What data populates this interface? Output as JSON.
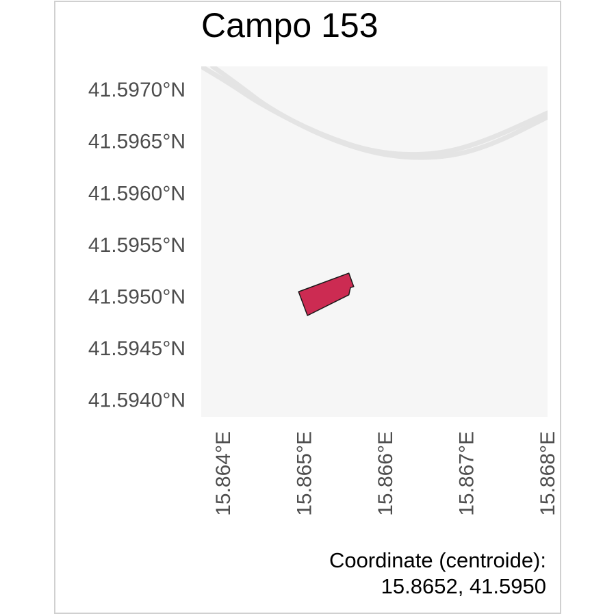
{
  "title": "Campo 153",
  "colors": {
    "parcel_fill": "#cc2b52",
    "parcel_stroke": "#1a1a1a",
    "basemap": "#f6f6f6",
    "road": "#e4e4e4",
    "tick_text": "#4d4d4d"
  },
  "map": {
    "type": "map",
    "basemap": "light-grey tiles with curved road",
    "x_axis": {
      "range": [
        15.86374,
        15.86801
      ],
      "ticks": [
        15.864,
        15.865,
        15.866,
        15.867,
        15.868
      ],
      "tick_labels": [
        "15.864°E",
        "15.865°E",
        "15.866°E",
        "15.867°E",
        "15.868°E"
      ]
    },
    "y_axis": {
      "range": [
        41.59383,
        41.59722
      ],
      "ticks": [
        41.597,
        41.5965,
        41.596,
        41.5955,
        41.595,
        41.5945,
        41.594
      ],
      "tick_labels": [
        "41.5970°N",
        "41.5965°N",
        "41.5960°N",
        "41.5955°N",
        "41.5950°N",
        "41.5945°N",
        "41.5940°N"
      ]
    },
    "parcel": {
      "name": "Campo 153",
      "polygon": [
        [
          15.86494,
          41.59504
        ],
        [
          15.86556,
          41.59522
        ],
        [
          15.86562,
          41.59509
        ],
        [
          15.86558,
          41.59508
        ],
        [
          15.86556,
          41.59501
        ],
        [
          15.86505,
          41.59481
        ]
      ]
    },
    "road": {
      "outer": [
        [
          15.86374,
          41.59722
        ],
        [
          15.86408,
          41.59706
        ],
        [
          15.8645,
          41.59684
        ],
        [
          15.8652,
          41.59656
        ],
        [
          15.8659,
          41.59638
        ],
        [
          15.8666,
          41.59636
        ],
        [
          15.8672,
          41.59648
        ],
        [
          15.86801,
          41.59677
        ]
      ],
      "inner": [
        [
          15.86388,
          41.59722
        ],
        [
          15.8642,
          41.59704
        ],
        [
          15.8646,
          41.5968
        ],
        [
          15.8653,
          41.59652
        ],
        [
          15.866,
          41.59635
        ],
        [
          15.8667,
          41.59633
        ],
        [
          15.8673,
          41.59645
        ],
        [
          15.86801,
          41.59673
        ]
      ]
    }
  },
  "caption": {
    "line1": "Coordinate (centroide):",
    "line2": "15.8652, 41.5950"
  }
}
